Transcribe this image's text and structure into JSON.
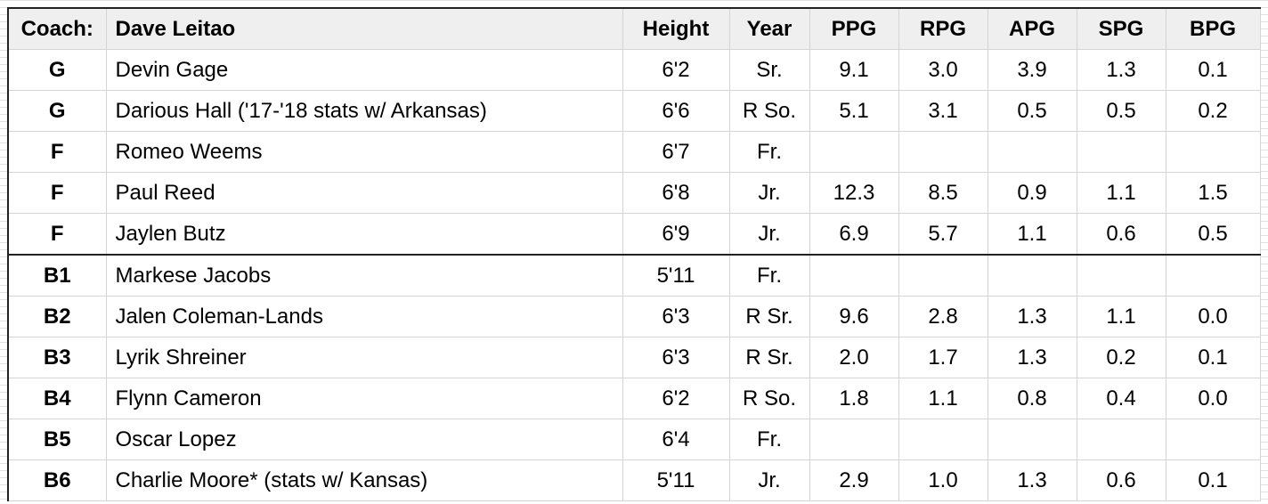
{
  "table": {
    "header": [
      "Coach:",
      "Dave Leitao",
      "Height",
      "Year",
      "PPG",
      "RPG",
      "APG",
      "SPG",
      "BPG"
    ],
    "rows": [
      [
        "G",
        "Devin Gage",
        "6'2",
        "Sr.",
        "9.1",
        "3.0",
        "3.9",
        "1.3",
        "0.1"
      ],
      [
        "G",
        "Darious Hall ('17-'18 stats w/ Arkansas)",
        "6'6",
        "R So.",
        "5.1",
        "3.1",
        "0.5",
        "0.5",
        "0.2"
      ],
      [
        "F",
        "Romeo Weems",
        "6'7",
        "Fr.",
        null,
        null,
        null,
        null,
        null
      ],
      [
        "F",
        "Paul Reed",
        "6'8",
        "Jr.",
        "12.3",
        "8.5",
        "0.9",
        "1.1",
        "1.5"
      ],
      [
        "F",
        "Jaylen Butz",
        "6'9",
        "Jr.",
        "6.9",
        "5.7",
        "1.1",
        "0.6",
        "0.5"
      ],
      [
        "B1",
        "Markese Jacobs",
        "5'11",
        "Fr.",
        null,
        null,
        null,
        null,
        null
      ],
      [
        "B2",
        "Jalen Coleman-Lands",
        "6'3",
        "R Sr.",
        "9.6",
        "2.8",
        "1.3",
        "1.1",
        "0.0"
      ],
      [
        "B3",
        "Lyrik Shreiner",
        "6'3",
        "R Sr.",
        "2.0",
        "1.7",
        "1.3",
        "0.2",
        "0.1"
      ],
      [
        "B4",
        "Flynn Cameron",
        "6'2",
        "R So.",
        "1.8",
        "1.1",
        "0.8",
        "0.4",
        "0.0"
      ],
      [
        "B5",
        "Oscar Lopez",
        "6'4",
        "Fr.",
        null,
        null,
        null,
        null,
        null
      ],
      [
        "B6",
        "Charlie Moore* (stats w/ Kansas)",
        "5'11",
        "Jr.",
        "2.9",
        "1.0",
        "1.3",
        "0.6",
        "0.1"
      ]
    ]
  }
}
